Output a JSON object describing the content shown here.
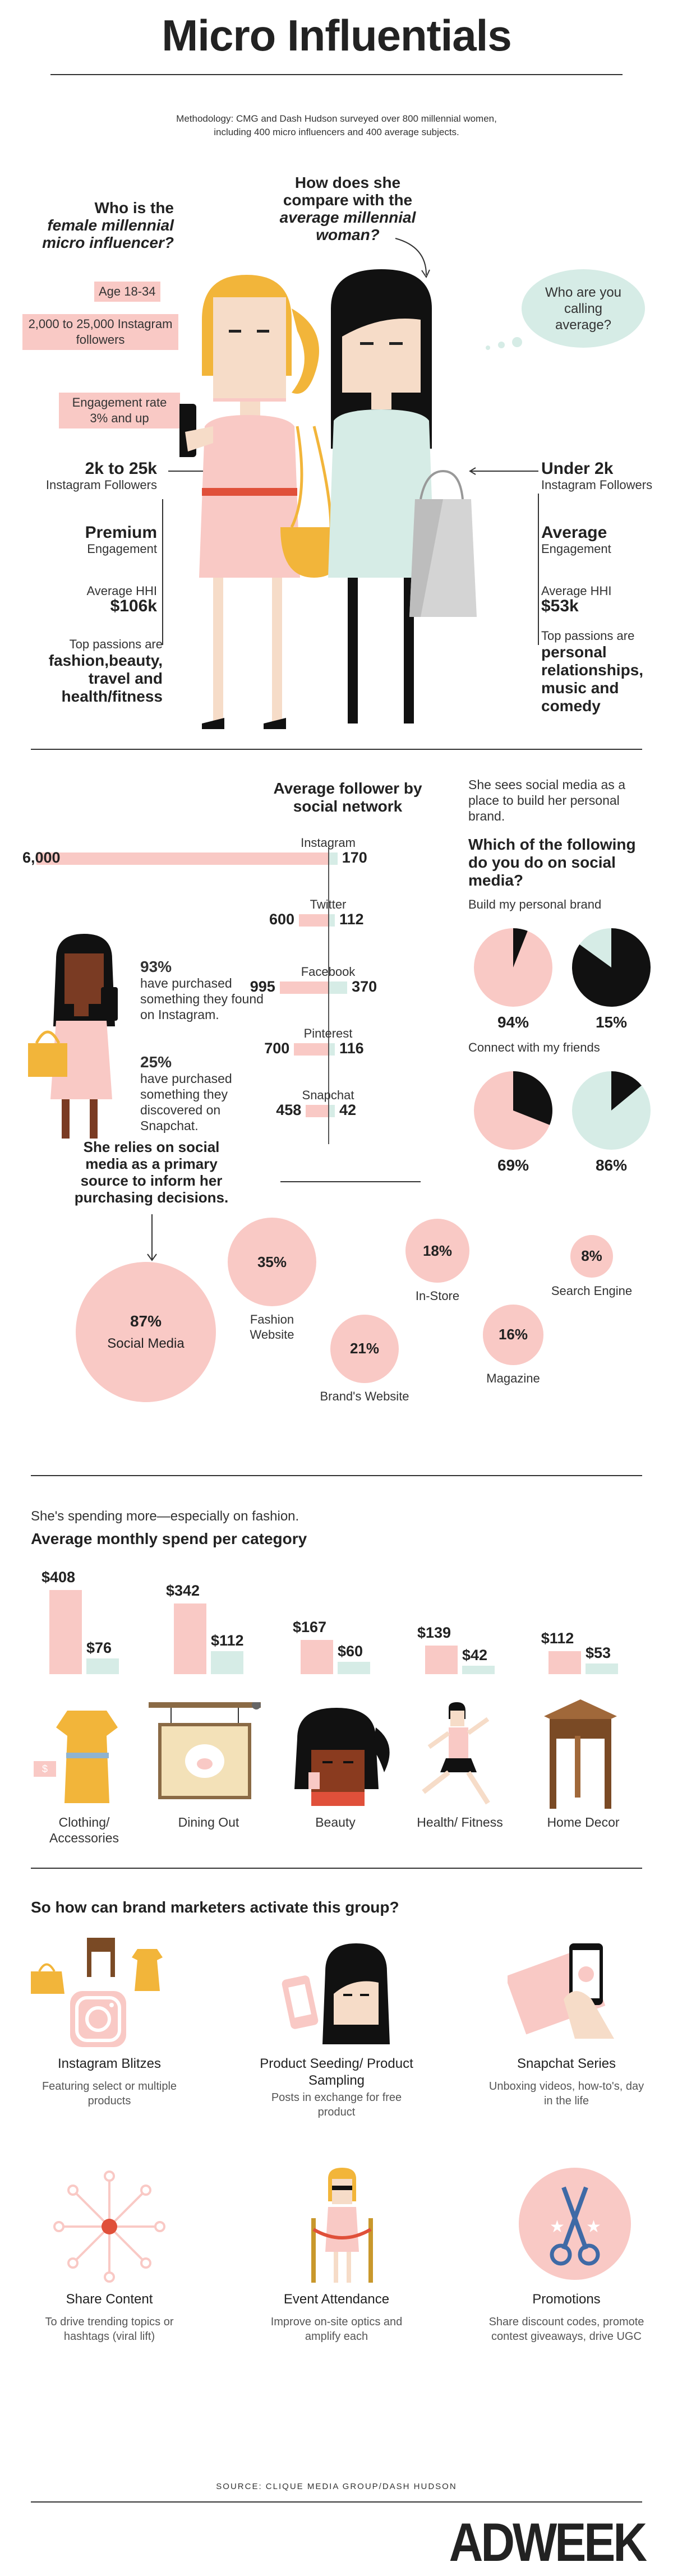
{
  "header": {
    "title": "Micro Influentials",
    "methodology": "Methodology: CMG and Dash Hudson surveyed over 800 millennial women, including 400 micro influencers and 400 average subjects."
  },
  "profile": {
    "question_left_1": "Who is the",
    "question_left_2": "female millennial micro influencer?",
    "question_center_1": "How does she compare with the",
    "question_center_2": "average millennial woman?",
    "speech_bubble": "Who are you calling average?",
    "tag_age": "Age 18-34",
    "tag_followers": "2,000 to 25,000 Instagram followers",
    "tag_engagement": "Engagement rate 3% and up",
    "influencer": {
      "followers_big": "2k to 25k",
      "followers_small": "Instagram Followers",
      "engagement_big": "Premium",
      "engagement_small": "Engagement",
      "hhi_small": "Average HHI",
      "hhi_big": "$106k",
      "passions_small": "Top passions are",
      "passions_big": "fashion,beauty, travel and health/fitness"
    },
    "average": {
      "followers_big": "Under 2k",
      "followers_small": "Instagram Followers",
      "engagement_big": "Average",
      "engagement_small": "Engagement",
      "hhi_small": "Average HHI",
      "hhi_big": "$53k",
      "passions_small": "Top passions are",
      "passions_big": "personal relationships, music and comedy"
    }
  },
  "social": {
    "title": "Average follower by social network",
    "networks": [
      {
        "name": "Instagram",
        "influencer": 6000,
        "average": 170,
        "influencer_label": "6,000",
        "average_label": "170"
      },
      {
        "name": "Twitter",
        "influencer": 600,
        "average": 112,
        "influencer_label": "600",
        "average_label": "112"
      },
      {
        "name": "Facebook",
        "influencer": 995,
        "average": 370,
        "influencer_label": "995",
        "average_label": "370"
      },
      {
        "name": "Pinterest",
        "influencer": 700,
        "average": 116,
        "influencer_label": "700",
        "average_label": "116"
      },
      {
        "name": "Snapchat",
        "influencer": 458,
        "average": 42,
        "influencer_label": "458",
        "average_label": "42"
      }
    ],
    "stat1_big": "93%",
    "stat1_small": "have purchased something they found on Instagram.",
    "stat2_big": "25%",
    "stat2_small": "have purchased something they discovered on Snapchat.",
    "relies": "She relies on social media as a primary source to inform her purchasing decisions.",
    "brand_intro": "She sees social media as a place to build her personal brand.",
    "pie_question": "Which of the following do you do on social media?",
    "pie_groups": [
      {
        "label": "Build my personal brand",
        "influencer": 94,
        "average": 15,
        "influencer_label": "94%",
        "average_label": "15%"
      },
      {
        "label": "Connect with my friends",
        "influencer": 69,
        "average": 86,
        "influencer_label": "69%",
        "average_label": "86%"
      }
    ],
    "sources": [
      {
        "value": "87%",
        "label": "Social Media"
      },
      {
        "value": "35%",
        "label": "Fashion Website"
      },
      {
        "value": "21%",
        "label": "Brand's Website"
      },
      {
        "value": "18%",
        "label": "In-Store"
      },
      {
        "value": "16%",
        "label": "Magazine"
      },
      {
        "value": "8%",
        "label": "Search Engine"
      }
    ]
  },
  "spend": {
    "intro": "She's spending more—especially on fashion.",
    "title": "Average monthly spend per category",
    "categories": [
      {
        "name": "Clothing/ Accessories",
        "influencer": 408,
        "average": 76,
        "influencer_label": "$408",
        "average_label": "$76"
      },
      {
        "name": "Dining Out",
        "influencer": 342,
        "average": 112,
        "influencer_label": "$342",
        "average_label": "$112"
      },
      {
        "name": "Beauty",
        "influencer": 167,
        "average": 60,
        "influencer_label": "$167",
        "average_label": "$60"
      },
      {
        "name": "Health/ Fitness",
        "influencer": 139,
        "average": 42,
        "influencer_label": "$139",
        "average_label": "$42"
      },
      {
        "name": "Home Decor",
        "influencer": 112,
        "average": 53,
        "influencer_label": "$112",
        "average_label": "$53"
      }
    ]
  },
  "activate": {
    "title": "So how can brand marketers activate this group?",
    "tactics": [
      {
        "title": "Instagram Blitzes",
        "desc": "Featuring select or multiple products"
      },
      {
        "title": "Product Seeding/ Product Sampling",
        "desc": "Posts in exchange for free product"
      },
      {
        "title": "Snapchat Series",
        "desc": "Unboxing videos, how-to's, day in the life"
      },
      {
        "title": "Share Content",
        "desc": "To drive trending topics or hashtags (viral lift)"
      },
      {
        "title": "Event Attendance",
        "desc": "Improve on-site optics and amplify each"
      },
      {
        "title": "Promotions",
        "desc": "Share discount codes, promote contest giveaways, drive UGC"
      }
    ]
  },
  "footer": {
    "source": "SOURCE: CLIQUE MEDIA GROUP/DASH HUDSON",
    "logo": "ADWEEK"
  },
  "colors": {
    "pink": "#f9c9c5",
    "mint": "#d6ece6",
    "black": "#111111",
    "yellow": "#f2b53a"
  }
}
